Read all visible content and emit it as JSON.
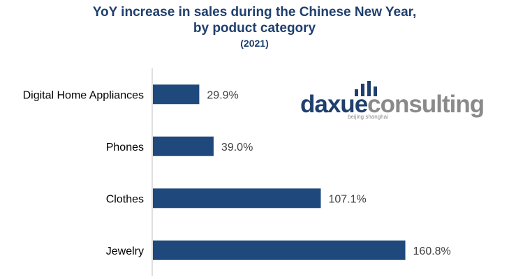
{
  "chart_data": {
    "type": "bar",
    "orientation": "horizontal",
    "title": "YoY increase in sales during the Chinese New Year,",
    "title_line2": "by poduct category",
    "subtitle": "(2021)",
    "categories": [
      "Digital Home Appliances",
      "Phones",
      "Clothes",
      "Jewelry"
    ],
    "values": [
      29.9,
      39.0,
      107.1,
      160.8
    ],
    "data_labels": [
      "29.9%",
      "39.0%",
      "107.1%",
      "160.8%"
    ],
    "xlim": [
      0,
      165
    ],
    "grid": false,
    "legend": "none",
    "bar_color": "#1f497d"
  },
  "watermark": {
    "text_part1": "daxue",
    "text_part2": "consulting",
    "tagline": "beijing shanghai"
  }
}
